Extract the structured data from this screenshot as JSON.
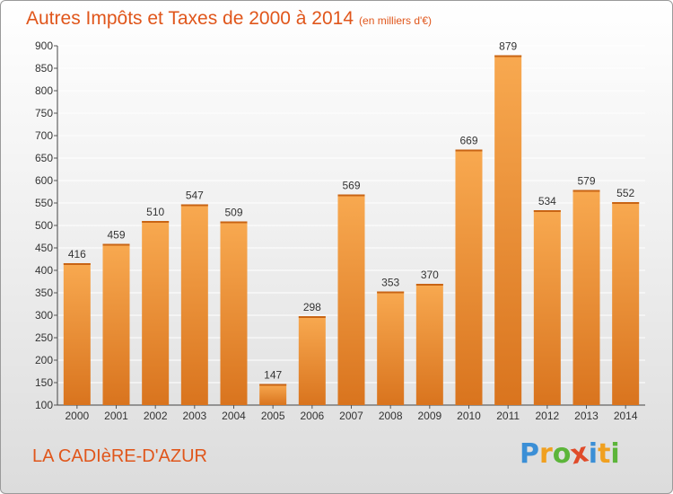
{
  "title": "Autres Impôts et Taxes de 2000 à 2014",
  "unit": "(en milliers d'€)",
  "location": "LA CADIèRE-D'AZUR",
  "logo": {
    "text": "Proxiti",
    "letters": [
      {
        "ch": "P",
        "color": "#3b8fd6"
      },
      {
        "ch": "r",
        "color": "#f0a020"
      },
      {
        "ch": "o",
        "color": "#5cb53a"
      },
      {
        "ch": "x",
        "color": "#e04b2a"
      },
      {
        "ch": "i",
        "color": "#3b8fd6"
      },
      {
        "ch": "t",
        "color": "#f0a020"
      },
      {
        "ch": "i",
        "color": "#5cb53a"
      }
    ]
  },
  "colors": {
    "title": "#e0561b",
    "bar_light": "#f8a950",
    "bar_dark": "#d9741e",
    "grid": "#ffffff",
    "text": "#333333"
  },
  "chart_data": {
    "type": "bar",
    "categories": [
      "2000",
      "2001",
      "2002",
      "2003",
      "2004",
      "2005",
      "2006",
      "2007",
      "2008",
      "2009",
      "2010",
      "2011",
      "2012",
      "2013",
      "2014"
    ],
    "values": [
      416,
      459,
      510,
      547,
      509,
      147,
      298,
      569,
      353,
      370,
      669,
      879,
      534,
      579,
      552
    ],
    "ylim": [
      100,
      900
    ],
    "yticks": [
      100,
      150,
      200,
      250,
      300,
      350,
      400,
      450,
      500,
      550,
      600,
      650,
      700,
      750,
      800,
      850,
      900
    ],
    "grid": true,
    "data_labels": true
  }
}
